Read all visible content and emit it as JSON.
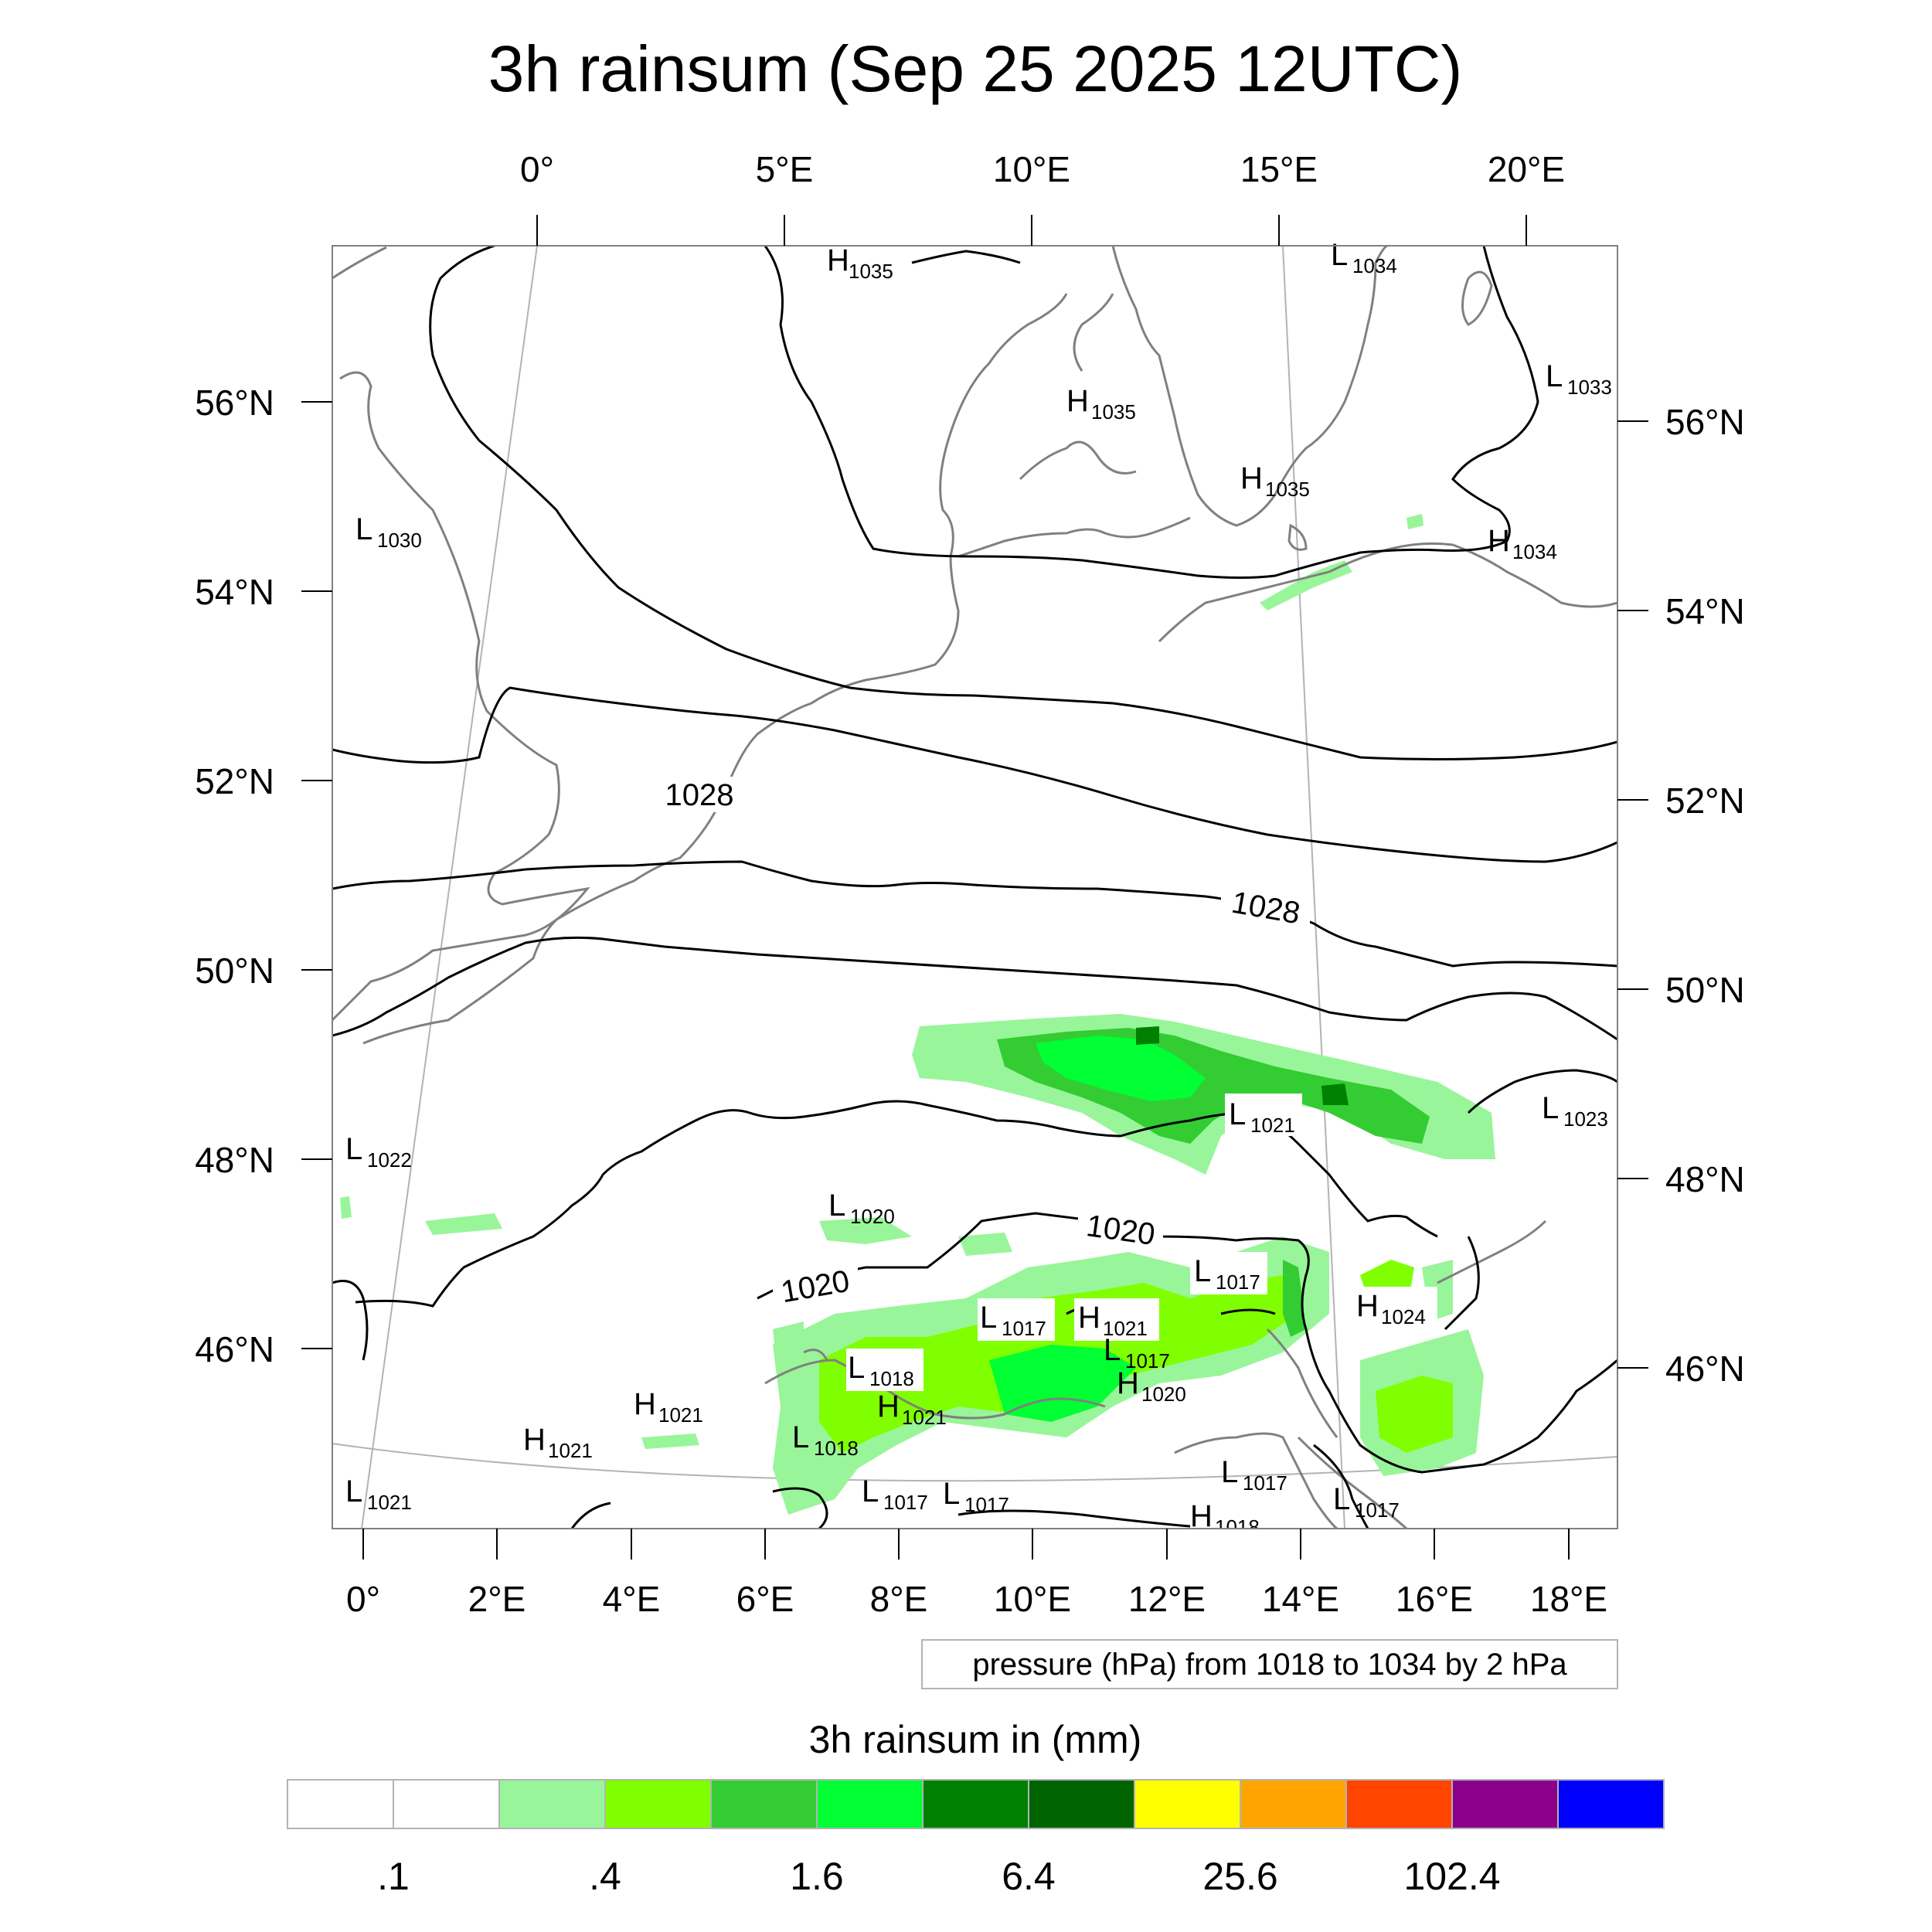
{
  "title": "3h rainsum (Sep 25 2025 12UTC)",
  "top_lon_labels": [
    "0°",
    "5°E",
    "10°E",
    "15°E",
    "20°E"
  ],
  "bottom_lon_labels": [
    "0°",
    "2°E",
    "4°E",
    "6°E",
    "8°E",
    "10°E",
    "12°E",
    "14°E",
    "16°E",
    "18°E"
  ],
  "left_lat_labels": [
    "56°N",
    "54°N",
    "52°N",
    "50°N",
    "48°N",
    "46°N"
  ],
  "right_lat_labels": [
    "56°N",
    "54°N",
    "52°N",
    "50°N",
    "48°N",
    "46°N"
  ],
  "pressure_systems": [
    {
      "type": "H",
      "value": "1035"
    },
    {
      "type": "L",
      "value": "1034"
    },
    {
      "type": "L",
      "value": "1033"
    },
    {
      "type": "H",
      "value": "1035"
    },
    {
      "type": "H",
      "value": "1035"
    },
    {
      "type": "L",
      "value": "1030"
    },
    {
      "type": "H",
      "value": "1034"
    },
    {
      "type": "L",
      "value": "1021"
    },
    {
      "type": "L",
      "value": "1023"
    },
    {
      "type": "L",
      "value": "1022"
    },
    {
      "type": "L",
      "value": "1020"
    },
    {
      "type": "L",
      "value": "1017"
    },
    {
      "type": "H",
      "value": "1024"
    },
    {
      "type": "L",
      "value": "1017"
    },
    {
      "type": "H",
      "value": "1021"
    },
    {
      "type": "L",
      "value": "1017"
    },
    {
      "type": "L",
      "value": "1018"
    },
    {
      "type": "H",
      "value": "1020"
    },
    {
      "type": "H",
      "value": "1021"
    },
    {
      "type": "H",
      "value": "1021"
    },
    {
      "type": "H",
      "value": "1021"
    },
    {
      "type": "L",
      "value": "1018"
    },
    {
      "type": "L",
      "value": "1017"
    },
    {
      "type": "L",
      "value": "1017"
    },
    {
      "type": "L",
      "value": "1017"
    },
    {
      "type": "L",
      "value": "1017"
    },
    {
      "type": "L",
      "value": "1021"
    },
    {
      "type": "H",
      "value": "1018"
    }
  ],
  "contour_labels": [
    "1028",
    "1028",
    "1020",
    "1020"
  ],
  "contour_note": "pressure (hPa) from 1018 to 1034 by 2 hPa",
  "colorbar": {
    "title": "3h rainsum in (mm)",
    "colors": [
      "#ffffff",
      "#ffffff",
      "#99f599",
      "#80ff00",
      "#33cc33",
      "#00ff33",
      "#008000",
      "#006400",
      "#ffff00",
      "#ffa500",
      "#ff4500",
      "#8b008b",
      "#0000ff"
    ],
    "labels": [
      ".1",
      ".4",
      "1.6",
      "6.4",
      "25.6",
      "102.4"
    ]
  },
  "colors": {
    "coastline": "#808080",
    "contour": "#000000",
    "gridline": "#b3b3b3",
    "frame": "#808080"
  }
}
